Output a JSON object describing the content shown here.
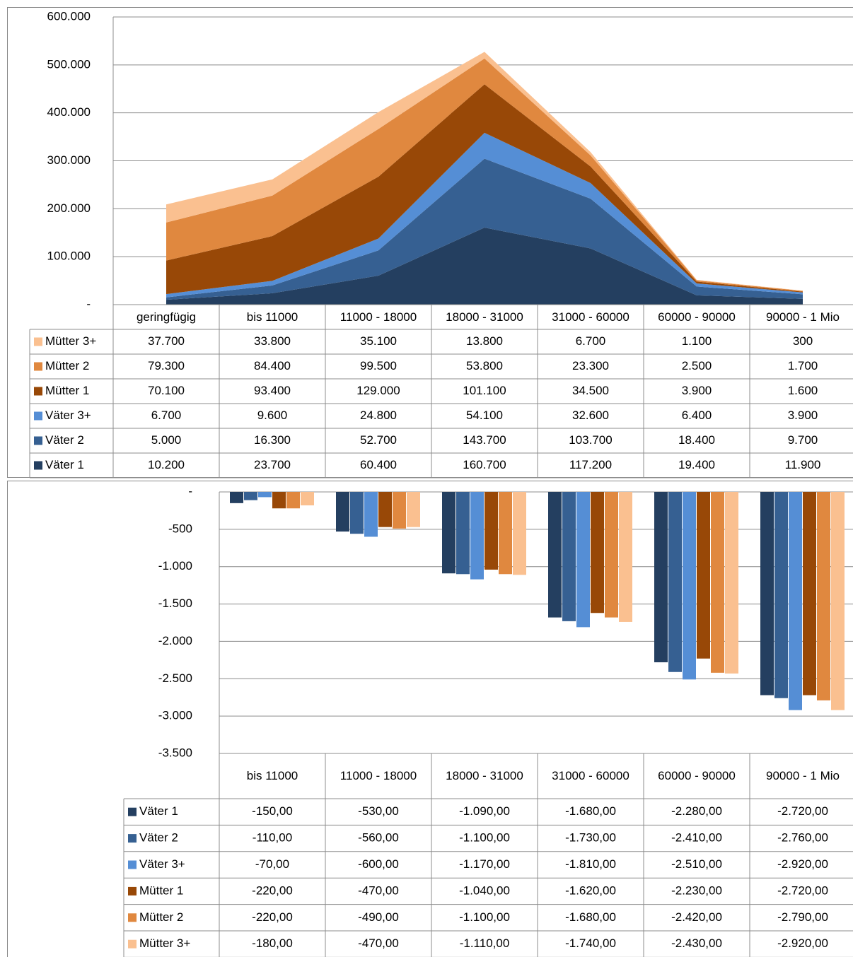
{
  "chart_data": [
    {
      "type": "stacked_area",
      "categories": [
        "geringfügig",
        "bis 11000",
        "11000 - 18000",
        "18000 - 31000",
        "31000 - 60000",
        "60000 - 90000",
        "90000 - 1 Mio"
      ],
      "ylim": [
        0,
        600000
      ],
      "yticks": [
        {
          "value": 0,
          "label": "-"
        },
        {
          "value": 100000,
          "label": "100.000"
        },
        {
          "value": 200000,
          "label": "200.000"
        },
        {
          "value": 300000,
          "label": "300.000"
        },
        {
          "value": 400000,
          "label": "400.000"
        },
        {
          "value": 500000,
          "label": "500.000"
        },
        {
          "value": 600000,
          "label": "600.000"
        }
      ],
      "grid": true,
      "series": [
        {
          "name": "Mütter 3+",
          "color": "#fac090",
          "values": [
            37700,
            33800,
            35100,
            13800,
            6700,
            1100,
            300
          ],
          "value_labels": [
            "37.700",
            "33.800",
            "35.100",
            "13.800",
            "6.700",
            "1.100",
            "300"
          ]
        },
        {
          "name": "Mütter 2",
          "color": "#e0883f",
          "values": [
            79300,
            84400,
            99500,
            53800,
            23300,
            2500,
            1700
          ],
          "value_labels": [
            "79.300",
            "84.400",
            "99.500",
            "53.800",
            "23.300",
            "2.500",
            "1.700"
          ]
        },
        {
          "name": "Mütter 1",
          "color": "#984807",
          "values": [
            70100,
            93400,
            129000,
            101100,
            34500,
            3900,
            1600
          ],
          "value_labels": [
            "70.100",
            "93.400",
            "129.000",
            "101.100",
            "34.500",
            "3.900",
            "1.600"
          ]
        },
        {
          "name": "Väter 3+",
          "color": "#558ed5",
          "values": [
            6700,
            9600,
            24800,
            54100,
            32600,
            6400,
            3900
          ],
          "value_labels": [
            "6.700",
            "9.600",
            "24.800",
            "54.100",
            "32.600",
            "6.400",
            "3.900"
          ]
        },
        {
          "name": "Väter 2",
          "color": "#366092",
          "values": [
            5000,
            16300,
            52700,
            143700,
            103700,
            18400,
            9700
          ],
          "value_labels": [
            "5.000",
            "16.300",
            "52.700",
            "143.700",
            "103.700",
            "18.400",
            "9.700"
          ]
        },
        {
          "name": "Väter 1",
          "color": "#243f60",
          "values": [
            10200,
            23700,
            60400,
            160700,
            117200,
            19400,
            11900
          ],
          "value_labels": [
            "10.200",
            "23.700",
            "60.400",
            "160.700",
            "117.200",
            "19.400",
            "11.900"
          ]
        }
      ]
    },
    {
      "type": "bar",
      "categories": [
        "bis 11000",
        "11000 - 18000",
        "18000 - 31000",
        "31000 - 60000",
        "60000 - 90000",
        "90000 - 1 Mio"
      ],
      "ylim": [
        -3500,
        0
      ],
      "yticks": [
        {
          "value": 0,
          "label": "-"
        },
        -500,
        {
          "value": -1000,
          "label": "-1.000"
        },
        {
          "value": -1500,
          "label": "-1.500"
        },
        {
          "value": -2000,
          "label": "-2.000"
        },
        {
          "value": -2500,
          "label": "-2.500"
        },
        {
          "value": -3000,
          "label": "-3.000"
        },
        {
          "value": -3500,
          "label": "-3.500"
        }
      ],
      "grid": true,
      "series": [
        {
          "name": "Väter 1",
          "color": "#243f60",
          "values": [
            -150,
            -530,
            -1090,
            -1680,
            -2280,
            -2720
          ],
          "value_labels": [
            "-150,00",
            "-530,00",
            "-1.090,00",
            "-1.680,00",
            "-2.280,00",
            "-2.720,00"
          ]
        },
        {
          "name": "Väter 2",
          "color": "#366092",
          "values": [
            -110,
            -560,
            -1100,
            -1730,
            -2410,
            -2760
          ],
          "value_labels": [
            "-110,00",
            "-560,00",
            "-1.100,00",
            "-1.730,00",
            "-2.410,00",
            "-2.760,00"
          ]
        },
        {
          "name": "Väter 3+",
          "color": "#558ed5",
          "values": [
            -70,
            -600,
            -1170,
            -1810,
            -2510,
            -2920
          ],
          "value_labels": [
            "-70,00",
            "-600,00",
            "-1.170,00",
            "-1.810,00",
            "-2.510,00",
            "-2.920,00"
          ]
        },
        {
          "name": "Mütter 1",
          "color": "#984807",
          "values": [
            -220,
            -470,
            -1040,
            -1620,
            -2230,
            -2720
          ],
          "value_labels": [
            "-220,00",
            "-470,00",
            "-1.040,00",
            "-1.620,00",
            "-2.230,00",
            "-2.720,00"
          ]
        },
        {
          "name": "Mütter 2",
          "color": "#e0883f",
          "values": [
            -220,
            -490,
            -1100,
            -1680,
            -2420,
            -2790
          ],
          "value_labels": [
            "-220,00",
            "-490,00",
            "-1.100,00",
            "-1.680,00",
            "-2.420,00",
            "-2.790,00"
          ]
        },
        {
          "name": "Mütter 3+",
          "color": "#fac090",
          "values": [
            -180,
            -470,
            -1110,
            -1740,
            -2430,
            -2920
          ],
          "value_labels": [
            "-180,00",
            "-470,00",
            "-1.110,00",
            "-1.740,00",
            "-2.430,00",
            "-2.920,00"
          ]
        }
      ]
    }
  ]
}
